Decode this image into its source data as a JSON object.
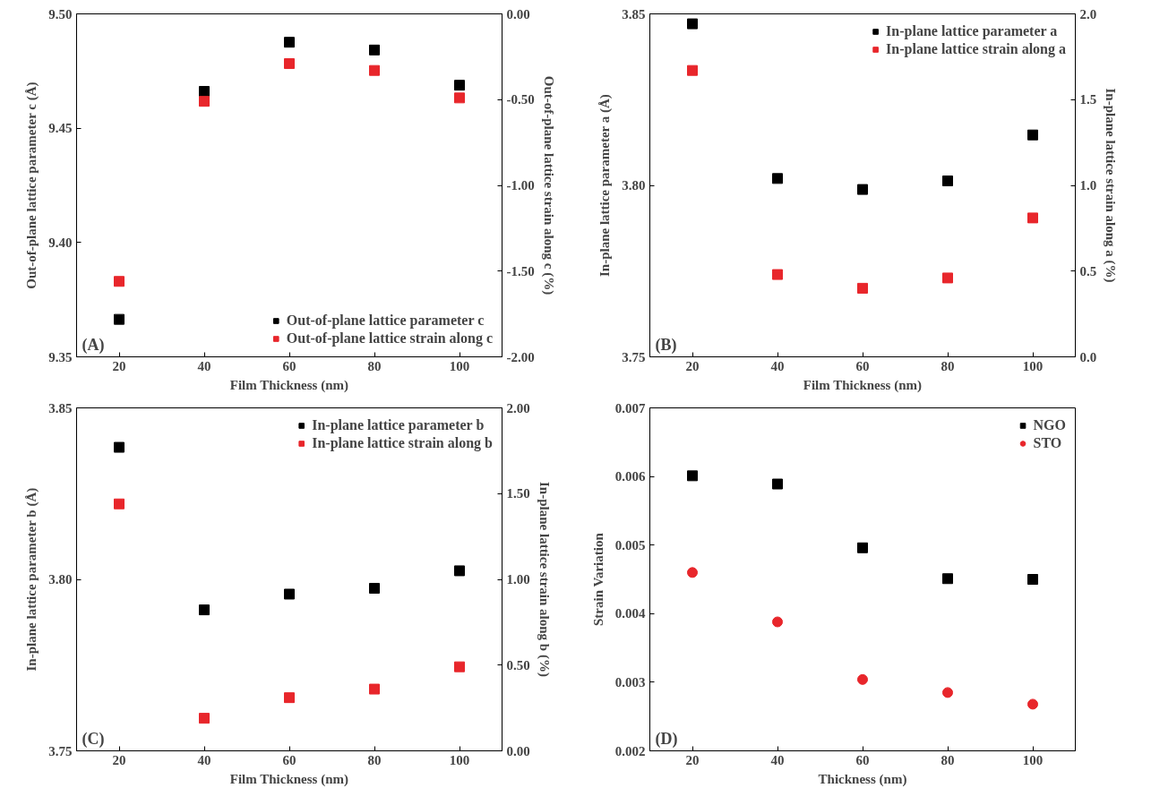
{
  "chart_data": [
    {
      "type": "scatter",
      "xlabel": "Film Thickness (nm)",
      "ylabel": "Out-of-plane lattice parameter c (Å)",
      "y2label": "Out-of-plane lattice strain along c (%)",
      "annotations": [
        "(A)"
      ],
      "x": [
        20,
        40,
        60,
        80,
        100
      ],
      "xlim": [
        10,
        110
      ],
      "xticks": [
        20,
        40,
        60,
        80,
        100
      ],
      "ylim": [
        9.35,
        9.5
      ],
      "yticks": [
        9.35,
        {
          "value": 9.4,
          "label": "9.40"
        },
        9.45,
        {
          "value": 9.5,
          "label": "9.50"
        }
      ],
      "y2lim": [
        -2,
        0
      ],
      "y2ticks": [
        {
          "value": -2,
          "label": "-2.00"
        },
        {
          "value": -1.5,
          "label": "-1.50"
        },
        {
          "value": -1,
          "label": "-1.00"
        },
        {
          "value": -0.5,
          "label": "-0.50"
        },
        {
          "value": 0,
          "label": "0.00"
        }
      ],
      "grid": false,
      "legend": "bottom right",
      "series": [
        {
          "name": "Out-of-plane lattice parameter c",
          "color": "#000000",
          "marker": "square",
          "values": [
            9.3664,
            9.4661,
            9.4876,
            9.4842,
            9.4688
          ]
        },
        {
          "name": "Out-of-plane lattice strain along c",
          "color": "#e8262b",
          "marker": "square",
          "axis": "y2",
          "values": [
            -1.56,
            -0.51,
            -0.29,
            -0.33,
            -0.49
          ]
        }
      ]
    },
    {
      "type": "scatter",
      "xlabel": "Film Thickness (nm)",
      "ylabel": "In-plane lattice parameter a (Å)",
      "y2label": "In-plane lattice strain along a (%)",
      "annotations": [
        "(B)"
      ],
      "x": [
        20,
        40,
        60,
        80,
        100
      ],
      "xlim": [
        10,
        110
      ],
      "xticks": [
        20,
        40,
        60,
        80,
        100
      ],
      "ylim": [
        3.75,
        3.85
      ],
      "yticks": [
        3.75,
        {
          "value": 3.8,
          "label": "3.80"
        },
        3.85
      ],
      "y2lim": [
        0,
        2
      ],
      "y2ticks": [
        {
          "value": 0,
          "label": "0.0"
        },
        0.5,
        {
          "value": 1,
          "label": "1.0"
        },
        1.5,
        {
          "value": 2,
          "label": "2.0"
        }
      ],
      "grid": false,
      "legend": "top right",
      "series": [
        {
          "name": "In-plane lattice parameter a",
          "color": "#000000",
          "marker": "square",
          "values": [
            3.8471,
            3.802,
            3.7988,
            3.8013,
            3.8147
          ]
        },
        {
          "name": "In-plane lattice strain along a",
          "color": "#e8262b",
          "marker": "square",
          "axis": "y2",
          "values": [
            1.67,
            0.48,
            0.4,
            0.46,
            0.81
          ]
        }
      ]
    },
    {
      "type": "scatter",
      "xlabel": "Film Thickness (nm)",
      "ylabel": "In-plane lattice parameter b (Å)",
      "y2label": "In-plane lattice strain along b (%)",
      "annotations": [
        "(C)"
      ],
      "x": [
        20,
        40,
        60,
        80,
        100
      ],
      "xlim": [
        10,
        110
      ],
      "xticks": [
        20,
        40,
        60,
        80,
        100
      ],
      "ylim": [
        3.75,
        3.85
      ],
      "yticks": [
        3.75,
        {
          "value": 3.8,
          "label": "3.80"
        },
        3.85
      ],
      "y2lim": [
        0,
        2
      ],
      "y2ticks": [
        {
          "value": 0,
          "label": "0.00"
        },
        {
          "value": 0.5,
          "label": "0.50"
        },
        {
          "value": 1,
          "label": "1.00"
        },
        {
          "value": 1.5,
          "label": "1.50"
        },
        {
          "value": 2,
          "label": "2.00"
        }
      ],
      "grid": false,
      "legend": "top right",
      "series": [
        {
          "name": "In-plane lattice parameter b",
          "color": "#000000",
          "marker": "square",
          "values": [
            3.8385,
            3.7911,
            3.7957,
            3.7974,
            3.8025
          ]
        },
        {
          "name": "In-plane lattice strain along b",
          "color": "#e8262b",
          "marker": "square",
          "axis": "y2",
          "values": [
            1.44,
            0.19,
            0.31,
            0.36,
            0.49
          ]
        }
      ]
    },
    {
      "type": "scatter",
      "xlabel": "Thickness (nm)",
      "ylabel": "Strain Variation",
      "annotations": [
        "(D)"
      ],
      "x": [
        20,
        40,
        60,
        80,
        100
      ],
      "xlim": [
        10,
        110
      ],
      "xticks": [
        20,
        40,
        60,
        80,
        100
      ],
      "ylim": [
        0.002,
        0.007
      ],
      "yticks": [
        0.002,
        0.003,
        0.004,
        0.005,
        0.006,
        0.007
      ],
      "grid": false,
      "legend": "top right",
      "series": [
        {
          "name": "NGO",
          "color": "#000000",
          "marker": "square",
          "values": [
            0.00601,
            0.00589,
            0.00496,
            0.00451,
            0.0045
          ]
        },
        {
          "name": "STO",
          "color": "#e8262b",
          "marker": "circle",
          "values": [
            0.0046,
            0.00388,
            0.00304,
            0.00285,
            0.00268
          ]
        }
      ]
    }
  ]
}
